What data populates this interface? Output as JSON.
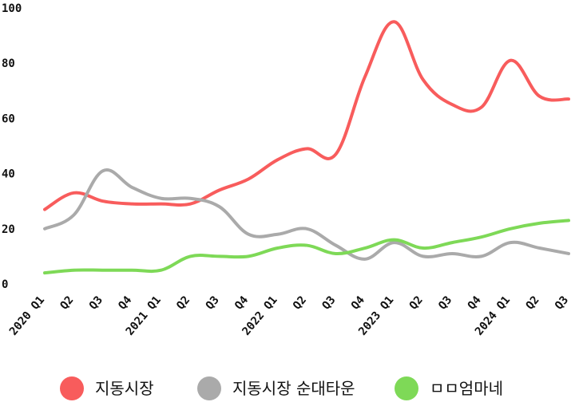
{
  "chart_data": {
    "type": "line",
    "title": "",
    "xlabel": "",
    "ylabel": "",
    "ylim": [
      0,
      100
    ],
    "y_ticks": [
      "0",
      "20",
      "40",
      "60",
      "80",
      "100"
    ],
    "grid": false,
    "legend_position": "bottom",
    "categories": [
      "2020 Q1",
      "Q2",
      "Q3",
      "Q4",
      "2021 Q1",
      "Q2",
      "Q3",
      "Q4",
      "2022 Q1",
      "Q2",
      "Q3",
      "Q4",
      "2023 Q1",
      "Q2",
      "Q3",
      "Q4",
      "2024 Q1",
      "Q2",
      "Q3"
    ],
    "series": [
      {
        "name": "지동시장",
        "color": "#f85c5c",
        "values": [
          27,
          33,
          30,
          29,
          29,
          29,
          34,
          38,
          45,
          49,
          47,
          75,
          95,
          74,
          65,
          64,
          81,
          68,
          67
        ]
      },
      {
        "name": "지동시장 순대타운",
        "color": "#aaaaaa",
        "values": [
          20,
          25,
          41,
          35,
          31,
          31,
          28,
          18,
          18,
          20,
          14,
          9,
          15,
          10,
          11,
          10,
          15,
          13,
          11
        ]
      },
      {
        "name": "ㅁㅁ엄마네",
        "color": "#7ed957",
        "values": [
          4,
          5,
          5,
          5,
          5,
          10,
          10,
          10,
          13,
          14,
          11,
          13,
          16,
          13,
          15,
          17,
          20,
          22,
          23
        ]
      }
    ]
  }
}
